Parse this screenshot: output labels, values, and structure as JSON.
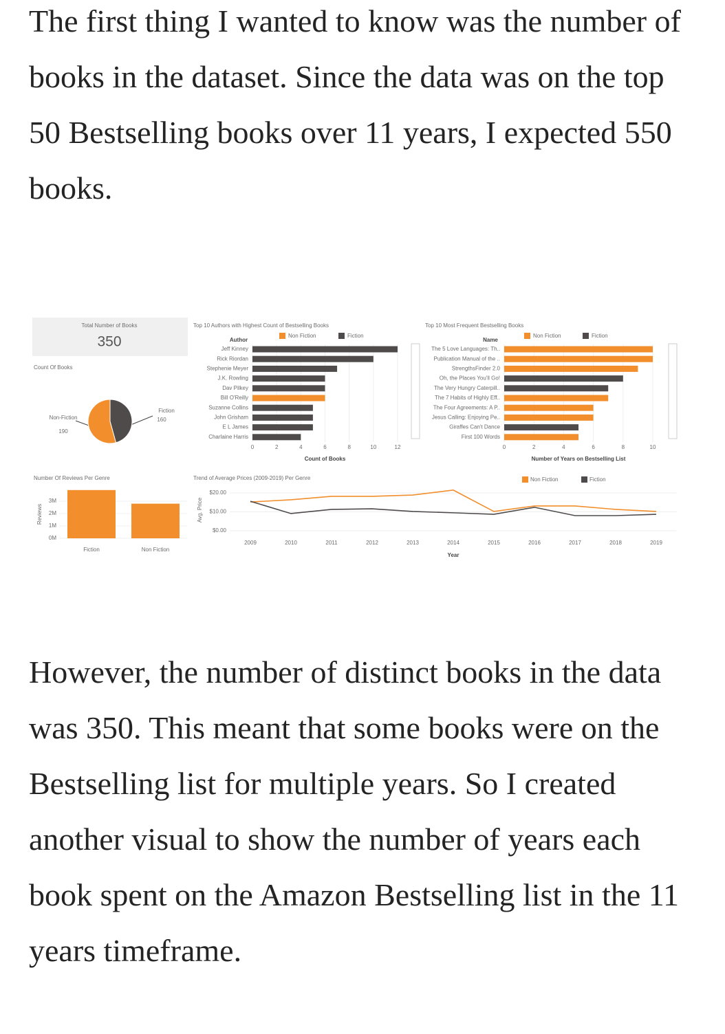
{
  "paragraphs": [
    "The first thing I wanted to know was the number of books in the dataset. Since the data was on the top 50 Bestselling books over 11 years, I expected 550 books.",
    "However, the number of distinct books in the data was 350. This meant that some books were on the Bestselling list for multiple years. So I created another visual to show the number of years each book spent on the Amazon Bestselling list in the 11 years timeframe."
  ],
  "dashboard": {
    "kpi": {
      "title": "Total Number of Books",
      "value": 350
    },
    "pie": {
      "type": "pie",
      "title": "Count Of Books",
      "categories": [
        "Non-Fiction",
        "Fiction"
      ],
      "values": [
        190,
        160
      ],
      "colors": [
        "#f28e2b",
        "#4f4b4b"
      ]
    },
    "authors": {
      "type": "bar",
      "title": "Top 10 Authors with Highest Count of Bestselling Books",
      "y_label": "Author",
      "x_label": "Count of Books",
      "categories": [
        "Jeff Kinney",
        "Rick Riordan",
        "Stephenie Meyer",
        "J.K. Rowling",
        "Dav Pilkey",
        "Bill O'Reilly",
        "Suzanne Collins",
        "John Grisham",
        "E L James",
        "Charlaine Harris"
      ],
      "series": [
        {
          "name": "Non Fiction",
          "color": "#f28e2b",
          "values": [
            null,
            null,
            null,
            null,
            null,
            6,
            null,
            null,
            null,
            null
          ]
        },
        {
          "name": "Fiction",
          "color": "#4f4b4b",
          "values": [
            12,
            10,
            7,
            6,
            6,
            null,
            5,
            5,
            5,
            4
          ]
        }
      ],
      "xlim": [
        0,
        12
      ],
      "xticks": [
        0,
        2,
        4,
        6,
        8,
        10,
        12
      ]
    },
    "books": {
      "type": "bar",
      "title": "Top 10 Most Frequent Bestselling Books",
      "y_label": "Name",
      "x_label": "Number of Years on Bestselling List",
      "categories": [
        "The 5 Love Languages: Th..",
        "Publication Manual of the ..",
        "StrengthsFinder 2.0",
        "Oh, the Places You'll Go!",
        "The Very Hungry Caterpill..",
        "The 7 Habits of Highly Eff..",
        "The Four Agreements: A P..",
        "Jesus Calling: Enjoying Pe..",
        "Giraffes Can't Dance",
        "First 100 Words"
      ],
      "series": [
        {
          "name": "Non Fiction",
          "color": "#f28e2b",
          "values": [
            10,
            10,
            9,
            null,
            null,
            7,
            6,
            6,
            null,
            5
          ]
        },
        {
          "name": "Fiction",
          "color": "#4f4b4b",
          "values": [
            null,
            null,
            null,
            8,
            7,
            null,
            null,
            null,
            5,
            null
          ]
        }
      ],
      "xlim": [
        0,
        10
      ],
      "xticks": [
        0,
        2,
        4,
        6,
        8,
        10
      ]
    },
    "reviews": {
      "type": "bar",
      "title": "Number Of Reviews Per Genre",
      "y_label": "Reviews",
      "categories": [
        "Fiction",
        "Non Fiction"
      ],
      "values": [
        3900000,
        2800000
      ],
      "color": "#f28e2b",
      "ylim": [
        0,
        4000000
      ],
      "yticks": [
        {
          "value": 0,
          "label": "0M"
        },
        {
          "value": 1000000,
          "label": "1M"
        },
        {
          "value": 2000000,
          "label": "2M"
        },
        {
          "value": 3000000,
          "label": "3M"
        }
      ]
    },
    "trend": {
      "type": "line",
      "title": "Trend of Average Prices (2009-2019) Per Genre",
      "y_label": "Avg. Price",
      "x_label": "Year",
      "x": [
        2009,
        2010,
        2011,
        2012,
        2013,
        2014,
        2015,
        2016,
        2017,
        2018,
        2019
      ],
      "series": [
        {
          "name": "Non Fiction",
          "color": "#f28e2b",
          "values": [
            15.2,
            16.4,
            18.2,
            18.2,
            18.9,
            21.5,
            10.2,
            13.1,
            13.1,
            11.3,
            10.2
          ]
        },
        {
          "name": "Fiction",
          "color": "#4f4b4b",
          "values": [
            15.6,
            9.1,
            11.3,
            11.6,
            10.2,
            9.5,
            8.7,
            12.4,
            8.0,
            8.0,
            8.7
          ]
        }
      ],
      "xlim": [
        2008.5,
        2019.5
      ],
      "xticks": [
        2009,
        2010,
        2011,
        2012,
        2013,
        2014,
        2015,
        2016,
        2017,
        2018,
        2019
      ],
      "ylim": [
        0,
        22
      ],
      "yticks": [
        {
          "value": 0,
          "label": "$0.00"
        },
        {
          "value": 10,
          "label": "$10.00"
        },
        {
          "value": 20,
          "label": "$20.00"
        }
      ]
    }
  }
}
